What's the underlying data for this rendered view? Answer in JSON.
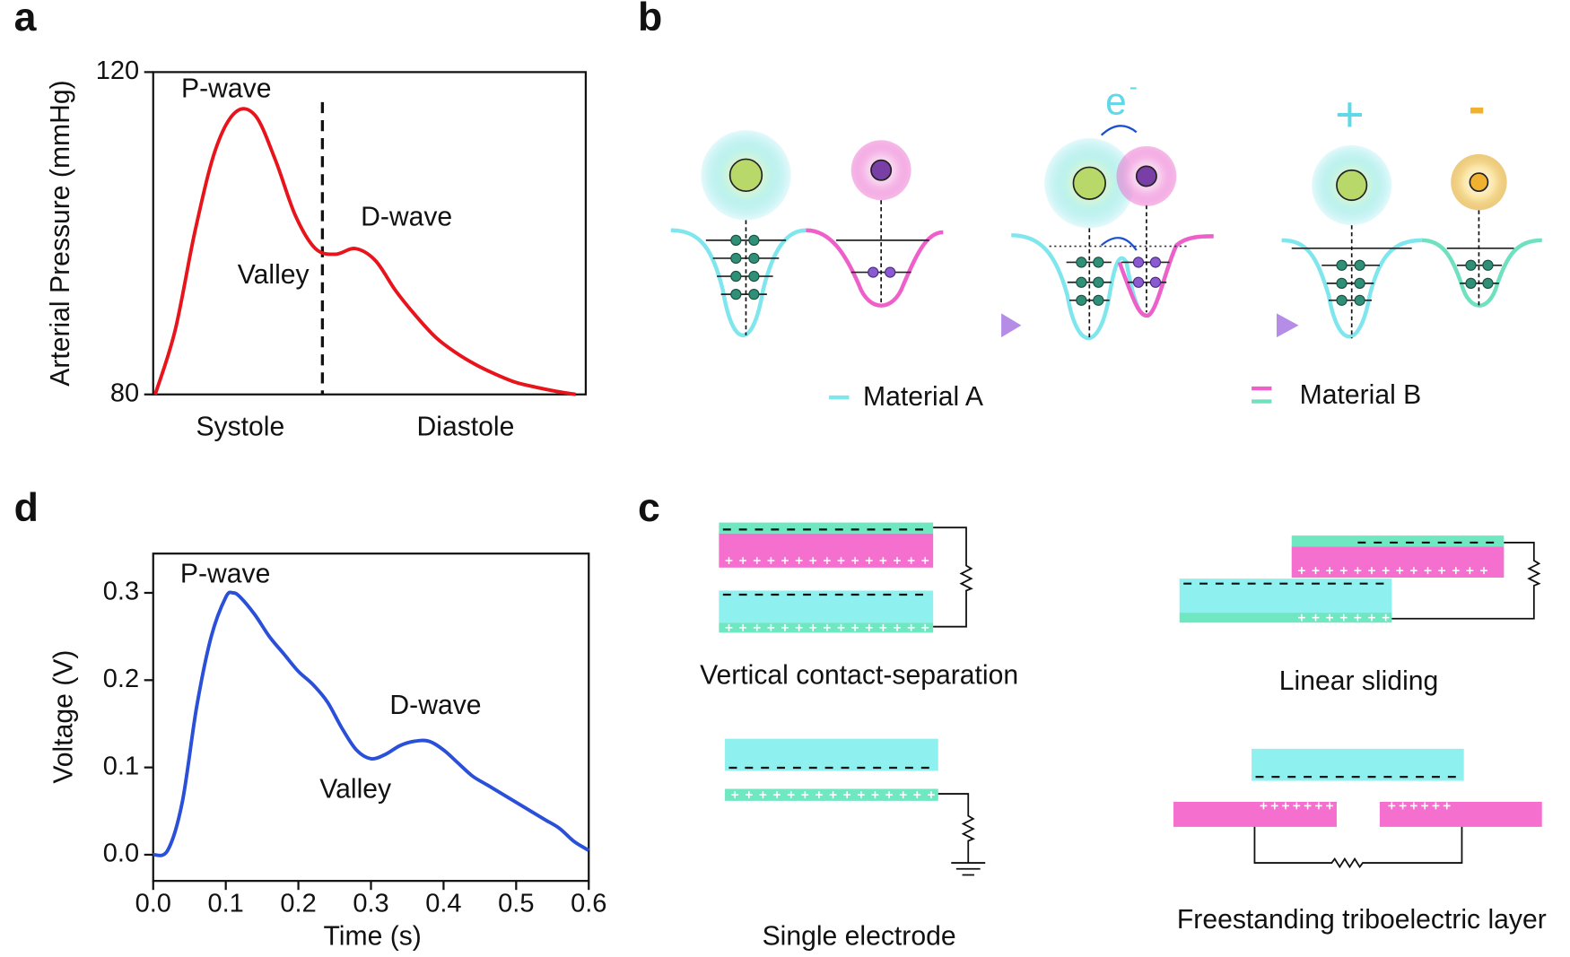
{
  "panels": {
    "a": "a",
    "b": "b",
    "c": "c",
    "d": "d"
  },
  "chart_data": [
    {
      "type": "line",
      "xlabel": null,
      "ylabel": "Arterial Pressure (mmHg)",
      "categories": [
        null,
        null,
        null,
        null,
        null,
        null,
        null,
        null,
        null,
        null,
        null,
        null,
        null,
        null,
        null,
        null,
        null,
        null,
        null,
        null,
        null,
        null
      ],
      "series": [
        {
          "name": null,
          "color": "#e8141c",
          "values": [
            80,
            88,
            100.4,
            110.3,
            115,
            114.6,
            109.1,
            102.2,
            98.1,
            97.4,
            98.1,
            96.6,
            92.9,
            89.8,
            87.1,
            85.2,
            83.7,
            82.5,
            81.5,
            80.9,
            80.4,
            80
          ]
        }
      ],
      "ylim": [
        80,
        120
      ],
      "yticks": [
        80,
        120
      ],
      "annotations": [
        "P-wave",
        "Valley",
        "D-wave",
        "Systole",
        "Diastole"
      ]
    },
    {
      "type": "line",
      "xlabel": "Time (s)",
      "ylabel": "Voltage (V)",
      "x": [
        0,
        0.02,
        0.04,
        0.06,
        0.08,
        0.1,
        0.11,
        0.12,
        0.14,
        0.16,
        0.18,
        0.2,
        0.22,
        0.24,
        0.26,
        0.28,
        0.3,
        0.32,
        0.34,
        0.36,
        0.38,
        0.4,
        0.42,
        0.44,
        0.46,
        0.48,
        0.5,
        0.52,
        0.54,
        0.56,
        0.58,
        0.6
      ],
      "series": [
        {
          "name": null,
          "color": "#2a4fd8",
          "values": [
            0,
            0.005,
            0.06,
            0.17,
            0.25,
            0.295,
            0.3,
            0.295,
            0.275,
            0.25,
            0.23,
            0.21,
            0.195,
            0.175,
            0.145,
            0.12,
            0.11,
            0.115,
            0.125,
            0.13,
            0.13,
            0.12,
            0.105,
            0.09,
            0.08,
            0.07,
            0.06,
            0.05,
            0.04,
            0.03,
            0.015,
            0.005
          ]
        }
      ],
      "xlim": [
        0,
        0.6
      ],
      "xticks": [
        {
          "value": 0,
          "label": "0.0"
        },
        0.1,
        0.2,
        0.3,
        0.4,
        0.5,
        0.6
      ],
      "ylim": [
        -0.03,
        0.345
      ],
      "yticks": [
        {
          "value": 0,
          "label": "0.0"
        },
        0.1,
        0.2,
        0.3
      ],
      "annotations": [
        "P-wave",
        "D-wave",
        "Valley"
      ]
    }
  ],
  "diagram_b": {
    "electron": "e",
    "electron_sup": "-",
    "positive": "+",
    "negative": "-",
    "legend": [
      "Material A",
      "Material B"
    ]
  },
  "diagram_c": {
    "modes": [
      "Vertical contact-separation",
      "Linear sliding",
      "Single electrode",
      "Freestanding triboelectric layer"
    ]
  }
}
